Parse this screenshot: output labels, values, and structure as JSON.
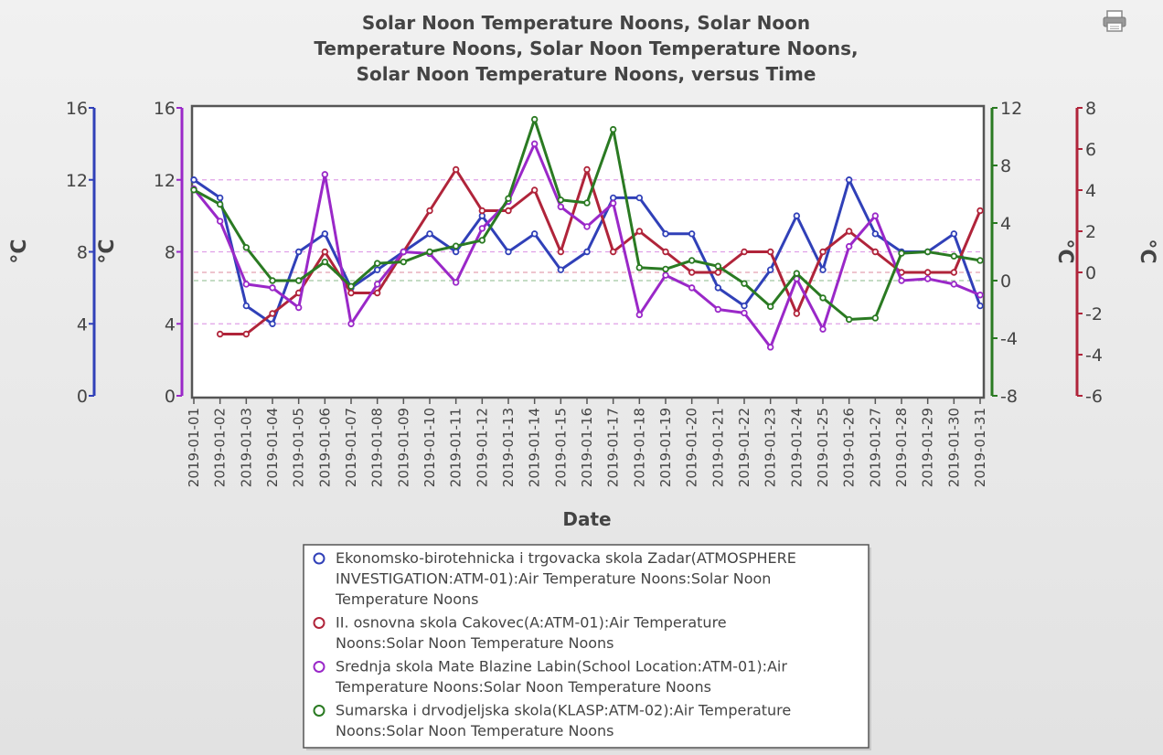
{
  "chart_data": {
    "type": "line",
    "title_lines": [
      "Solar Noon Temperature Noons, Solar Noon",
      "Temperature Noons, Solar Noon Temperature Noons,",
      "Solar Noon Temperature Noons, versus Time"
    ],
    "xlabel": "Date",
    "x": [
      "2019-01-01",
      "2019-01-02",
      "2019-01-03",
      "2019-01-04",
      "2019-01-05",
      "2019-01-06",
      "2019-01-07",
      "2019-01-08",
      "2019-01-09",
      "2019-01-10",
      "2019-01-11",
      "2019-01-12",
      "2019-01-13",
      "2019-01-14",
      "2019-01-15",
      "2019-01-16",
      "2019-01-17",
      "2019-01-18",
      "2019-01-19",
      "2019-01-20",
      "2019-01-21",
      "2019-01-22",
      "2019-01-23",
      "2019-01-24",
      "2019-01-25",
      "2019-01-26",
      "2019-01-27",
      "2019-01-28",
      "2019-01-29",
      "2019-01-30",
      "2019-01-31"
    ],
    "axes": [
      {
        "id": "blue",
        "side": "left",
        "unit": "°C",
        "ylim": [
          0,
          16
        ],
        "ticks": [
          0,
          4,
          8,
          12,
          16
        ],
        "color": "#3040b8"
      },
      {
        "id": "purple",
        "side": "left",
        "unit": "°C",
        "ylim": [
          0,
          16
        ],
        "ticks": [
          0,
          4,
          8,
          12,
          16
        ],
        "color": "#9a28c8"
      },
      {
        "id": "green",
        "side": "right",
        "unit": "°C",
        "ylim": [
          -8,
          12
        ],
        "ticks": [
          -8,
          -4,
          0,
          4,
          8,
          12
        ],
        "color": "#2a7a22"
      },
      {
        "id": "red",
        "side": "right",
        "unit": "°C",
        "ylim": [
          -6,
          8
        ],
        "ticks": [
          -6,
          -4,
          -2,
          0,
          2,
          4,
          6,
          8
        ],
        "color": "#b0243a"
      }
    ],
    "series": [
      {
        "name": "Ekonomsko-birotehnicka i trgovacka skola Zadar(ATMOSPHERE INVESTIGATION:ATM-01):Air Temperature Noons:Solar Noon Temperature Noons",
        "axis": "blue",
        "color": "#3040b8",
        "values": [
          12,
          11,
          5,
          4,
          8,
          9,
          6,
          7,
          8,
          9,
          8,
          10,
          8,
          9,
          7,
          8,
          11,
          11,
          9,
          9,
          6,
          5,
          7,
          10,
          7,
          12,
          9,
          8,
          8,
          9,
          5
        ]
      },
      {
        "name": "II. osnovna skola Cakovec(A:ATM-01):Air Temperature Noons:Solar Noon Temperature Noons",
        "axis": "red",
        "color": "#b0243a",
        "values": [
          null,
          -3,
          -3,
          -2,
          -1,
          1,
          -1,
          -1,
          1,
          3,
          5,
          3,
          3,
          4,
          1,
          5,
          1,
          2,
          1,
          0,
          0,
          1,
          1,
          -2,
          1,
          2,
          1,
          0,
          0,
          0,
          3
        ]
      },
      {
        "name": "Srednja skola Mate Blazine Labin(School Location:ATM-01):Air Temperature Noons:Solar Noon Temperature Noons",
        "axis": "purple",
        "color": "#9a28c8",
        "values": [
          11.5,
          9.7,
          6.2,
          6,
          4.9,
          12.3,
          4,
          6.2,
          8,
          7.9,
          6.3,
          9.3,
          10.8,
          14,
          10.5,
          9.4,
          10.7,
          4.5,
          6.7,
          6,
          4.8,
          4.6,
          2.7,
          6.5,
          3.7,
          8.3,
          10,
          6.4,
          6.5,
          6.2,
          5.6
        ]
      },
      {
        "name": "Sumarska i drvodjeljska skola(KLASP:ATM-02):Air Temperature Noons:Solar Noon Temperature Noons",
        "axis": "green",
        "color": "#2a7a22",
        "values": [
          6.3,
          5.3,
          2.3,
          0,
          0,
          1.3,
          -0.4,
          1.2,
          1.3,
          2,
          2.4,
          2.8,
          5.7,
          11.2,
          5.6,
          5.4,
          10.5,
          0.9,
          0.8,
          1.4,
          1,
          -0.2,
          -1.8,
          0.5,
          -1.2,
          -2.7,
          -2.6,
          1.9,
          2,
          1.7,
          1.4
        ]
      }
    ],
    "guides": [
      {
        "axis": "blue",
        "value": 12,
        "color": "#e0a0e8"
      },
      {
        "axis": "blue",
        "value": 8,
        "color": "#e0a0e8"
      },
      {
        "axis": "blue",
        "value": 4,
        "color": "#e0a0e8"
      },
      {
        "axis": "red",
        "value": 0,
        "color": "#e4a0b0"
      },
      {
        "axis": "green",
        "value": 0,
        "color": "#a0c8a0"
      }
    ],
    "legend_placement": "bottom-center",
    "legend_lines": [
      [
        "Ekonomsko-birotehnicka i trgovacka skola Zadar(ATMOSPHERE",
        "INVESTIGATION:ATM-01):Air Temperature Noons:Solar Noon",
        "Temperature Noons"
      ],
      [
        "II. osnovna skola Cakovec(A:ATM-01):Air Temperature",
        "Noons:Solar Noon Temperature Noons"
      ],
      [
        "Srednja skola Mate Blazine Labin(School Location:ATM-01):Air",
        "Temperature Noons:Solar Noon Temperature Noons"
      ],
      [
        "Sumarska i drvodjeljska skola(KLASP:ATM-02):Air Temperature",
        "Noons:Solar Noon Temperature Noons"
      ]
    ]
  },
  "toolbar": {
    "print_icon": "printer-icon"
  }
}
